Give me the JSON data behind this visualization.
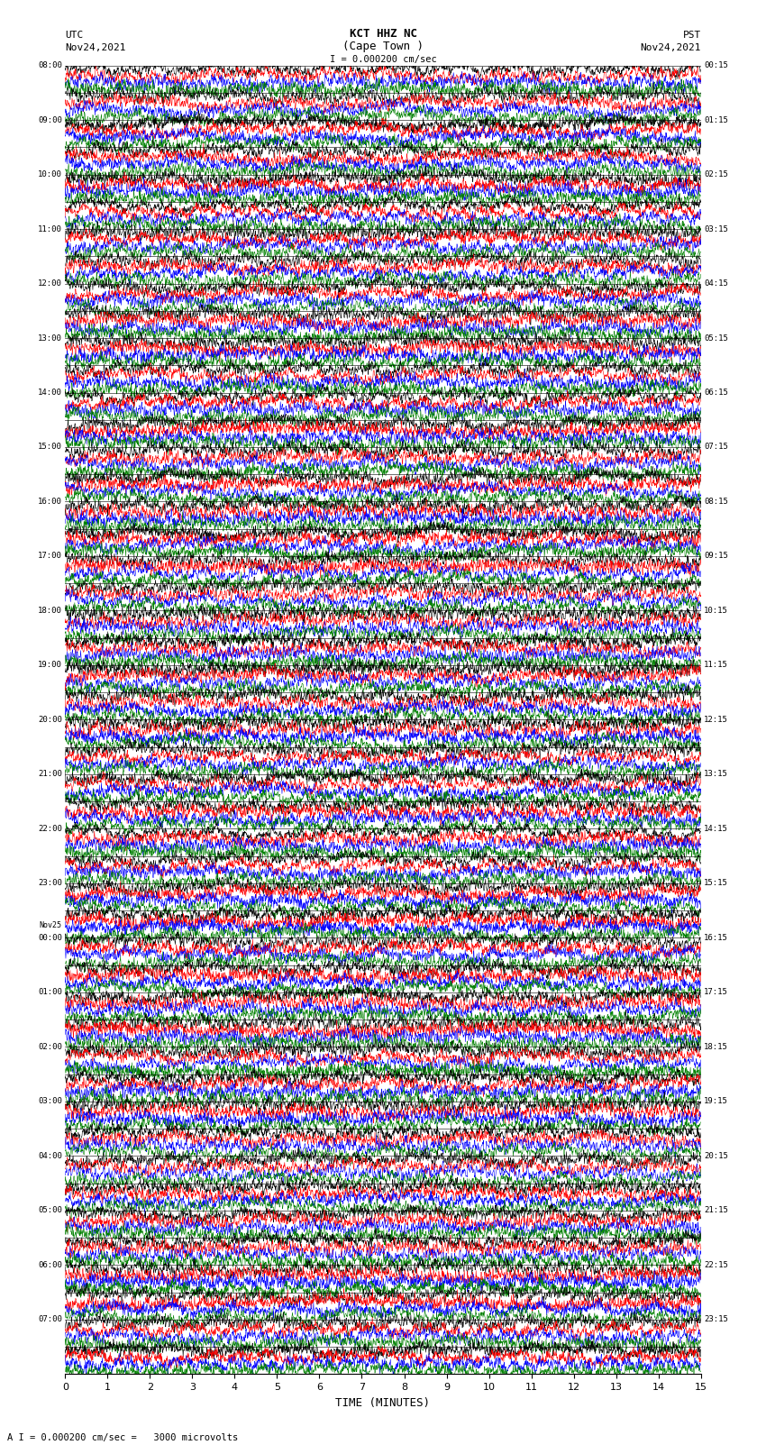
{
  "title_line1": "KCT HHZ NC",
  "title_line2": "(Cape Town )",
  "scale_label": "I = 0.000200 cm/sec",
  "left_header": "UTC",
  "left_date": "Nov24,2021",
  "right_header": "PST",
  "right_date": "Nov24,2021",
  "bottom_label": "TIME (MINUTES)",
  "bottom_note": "A I = 0.000200 cm/sec =   3000 microvolts",
  "xlabel_ticks": [
    0,
    1,
    2,
    3,
    4,
    5,
    6,
    7,
    8,
    9,
    10,
    11,
    12,
    13,
    14,
    15
  ],
  "left_times": [
    "08:00",
    "",
    "09:00",
    "",
    "10:00",
    "",
    "11:00",
    "",
    "12:00",
    "",
    "13:00",
    "",
    "14:00",
    "",
    "15:00",
    "",
    "16:00",
    "",
    "17:00",
    "",
    "18:00",
    "",
    "19:00",
    "",
    "20:00",
    "",
    "21:00",
    "",
    "22:00",
    "",
    "23:00",
    "",
    "Nov25\n00:00",
    "",
    "01:00",
    "",
    "02:00",
    "",
    "03:00",
    "",
    "04:00",
    "",
    "05:00",
    "",
    "06:00",
    "",
    "07:00",
    ""
  ],
  "right_times": [
    "00:15",
    "",
    "01:15",
    "",
    "02:15",
    "",
    "03:15",
    "",
    "04:15",
    "",
    "05:15",
    "",
    "06:15",
    "",
    "07:15",
    "",
    "08:15",
    "",
    "09:15",
    "",
    "10:15",
    "",
    "11:15",
    "",
    "12:15",
    "",
    "13:15",
    "",
    "14:15",
    "",
    "15:15",
    "",
    "16:15",
    "",
    "17:15",
    "",
    "18:15",
    "",
    "19:15",
    "",
    "20:15",
    "",
    "21:15",
    "",
    "22:15",
    "",
    "23:15",
    ""
  ],
  "n_rows": 48,
  "minutes": 15,
  "colors": [
    "black",
    "red",
    "blue",
    "green"
  ],
  "bg_color": "white",
  "noise_seed": 42,
  "fig_width": 8.5,
  "fig_height": 16.13,
  "dpi": 100
}
